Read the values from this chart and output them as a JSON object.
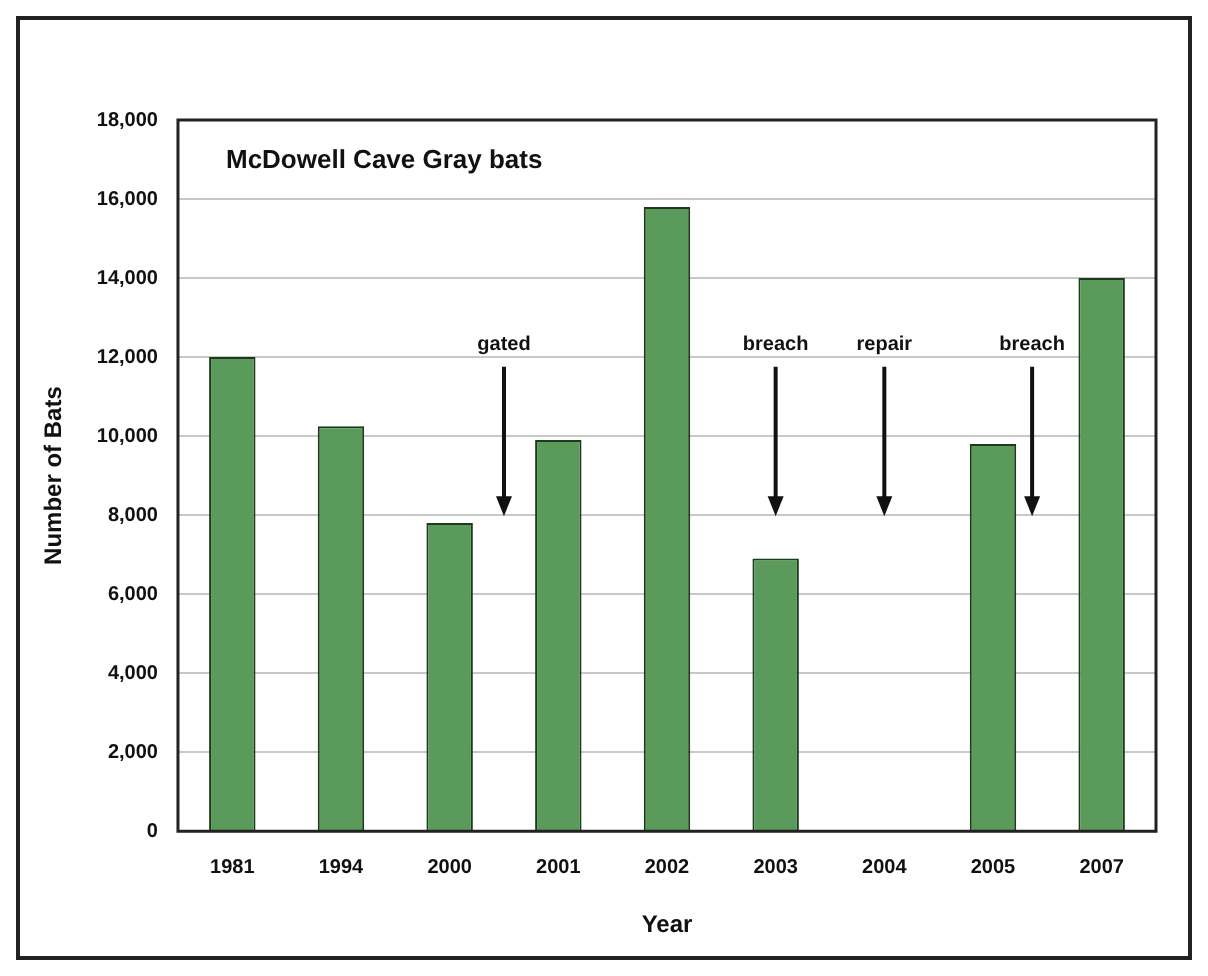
{
  "chart_data": {
    "type": "bar",
    "title": "McDowell Cave Gray bats",
    "xlabel": "Year",
    "ylabel": "Number of Bats",
    "categories": [
      "1981",
      "1994",
      "2000",
      "2001",
      "2002",
      "2003",
      "2004",
      "2005",
      "2007"
    ],
    "values": [
      12000,
      10250,
      7800,
      9900,
      15800,
      6900,
      null,
      9800,
      14000
    ],
    "color": "#5a9a5a",
    "ylim": [
      0,
      18000
    ],
    "yticks": [
      0,
      {
        "value": 2000,
        "label": "2,000"
      },
      {
        "value": 4000,
        "label": "4,000"
      },
      {
        "value": 6000,
        "label": "6,000"
      },
      {
        "value": 8000,
        "label": "8,000"
      },
      {
        "value": 10000,
        "label": "10,000"
      },
      {
        "value": 12000,
        "label": "12,000"
      },
      {
        "value": 14000,
        "label": "14,000"
      },
      {
        "value": 16000,
        "label": "16,000"
      },
      {
        "value": 18000,
        "label": "18,000"
      }
    ],
    "grid": "y",
    "legend": false,
    "annotations": [
      "gated",
      "breach",
      "repair",
      "breach"
    ]
  }
}
